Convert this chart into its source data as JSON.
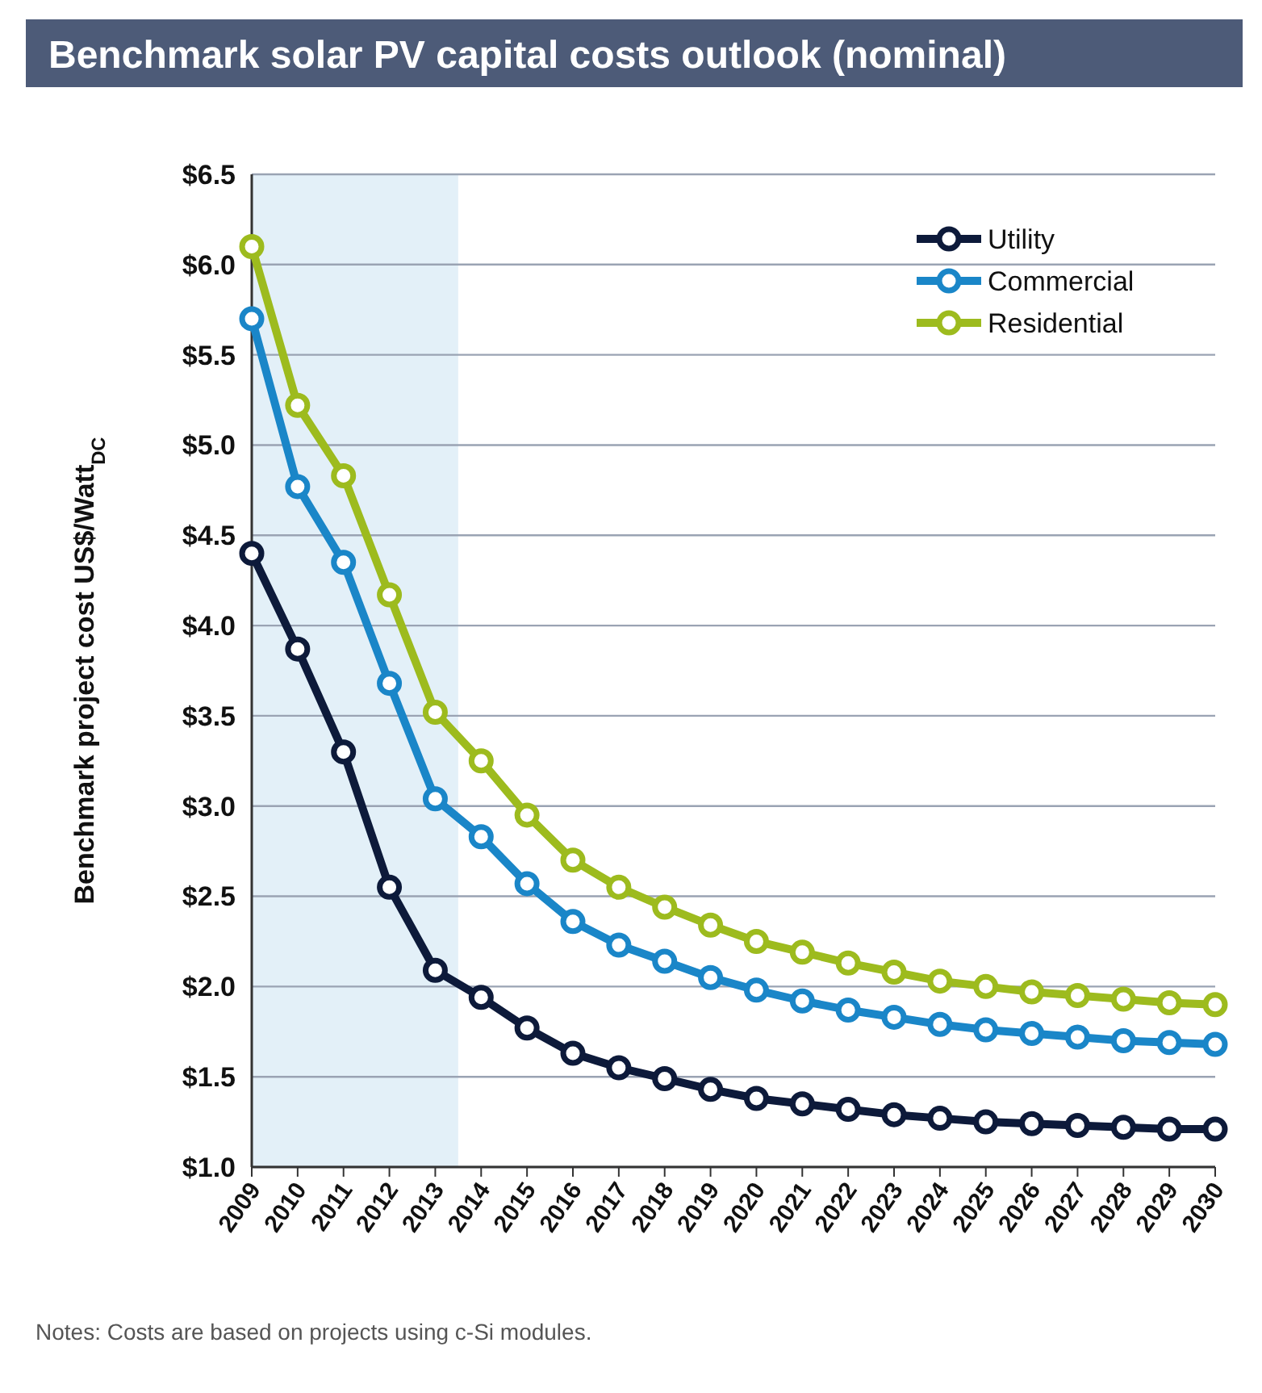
{
  "chart_data": {
    "type": "line",
    "title": "Benchmark solar PV capital costs outlook (nominal)",
    "ylabel": "Benchmark project cost US$/Watt$_{DC}$",
    "x": [
      2009,
      2010,
      2011,
      2012,
      2013,
      2014,
      2015,
      2016,
      2017,
      2018,
      2019,
      2020,
      2021,
      2022,
      2023,
      2024,
      2025,
      2026,
      2027,
      2028,
      2029,
      2030
    ],
    "xlim": [
      2009,
      2030
    ],
    "xticks": [
      2009,
      2010,
      2011,
      2012,
      2013,
      2014,
      2015,
      2016,
      2017,
      2018,
      2019,
      2020,
      2021,
      2022,
      2023,
      2024,
      2025,
      2026,
      2027,
      2028,
      2029,
      2030
    ],
    "ylim": [
      1.0,
      6.5
    ],
    "yticks": [
      {
        "value": 1.0,
        "label": "$1.0"
      },
      {
        "value": 1.5,
        "label": "$1.5"
      },
      {
        "value": 2.0,
        "label": "$2.0"
      },
      {
        "value": 2.5,
        "label": "$2.5"
      },
      {
        "value": 3.0,
        "label": "$3.0"
      },
      {
        "value": 3.5,
        "label": "$3.5"
      },
      {
        "value": 4.0,
        "label": "$4.0"
      },
      {
        "value": 4.5,
        "label": "$4.5"
      },
      {
        "value": 5.0,
        "label": "$5.0"
      },
      {
        "value": 5.5,
        "label": "$5.5"
      },
      {
        "value": 6.0,
        "label": "$6.0"
      },
      {
        "value": 6.5,
        "label": "$6.5"
      }
    ],
    "series": [
      {
        "name": "Utility",
        "color": "#0d1a3a",
        "values": [
          4.4,
          3.87,
          3.3,
          2.55,
          2.09,
          1.94,
          1.77,
          1.63,
          1.55,
          1.49,
          1.43,
          1.38,
          1.35,
          1.32,
          1.29,
          1.27,
          1.25,
          1.24,
          1.23,
          1.22,
          1.21,
          1.21
        ]
      },
      {
        "name": "Commercial",
        "color": "#1a86c8",
        "values": [
          5.7,
          4.77,
          4.35,
          3.68,
          3.04,
          2.83,
          2.57,
          2.36,
          2.23,
          2.14,
          2.05,
          1.98,
          1.92,
          1.87,
          1.83,
          1.79,
          1.76,
          1.74,
          1.72,
          1.7,
          1.69,
          1.68
        ]
      },
      {
        "name": "Residential",
        "color": "#9dbb1e",
        "values": [
          6.1,
          5.22,
          4.83,
          4.17,
          3.52,
          3.25,
          2.95,
          2.7,
          2.55,
          2.44,
          2.34,
          2.25,
          2.19,
          2.13,
          2.08,
          2.03,
          2.0,
          1.97,
          1.95,
          1.93,
          1.91,
          1.9
        ]
      }
    ],
    "bands": [
      {
        "axis": "x",
        "from": 2009,
        "to": 2013.5,
        "color": "#e3f0f8"
      }
    ],
    "grid": "y",
    "legend": "top right",
    "marker": "circle",
    "line_style": "solid",
    "annotations": [
      "Notes: Costs are based on projects using c-Si modules."
    ]
  }
}
